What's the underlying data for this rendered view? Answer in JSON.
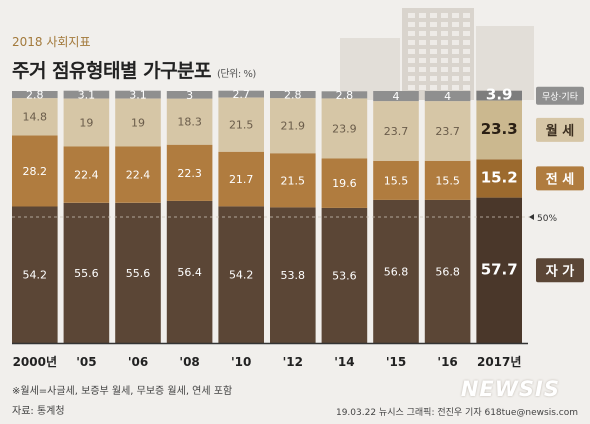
{
  "header": {
    "kicker": "2018 사회지표",
    "title": "주거 점유형태별 가구분포",
    "unit": "(단위: %)"
  },
  "footer": {
    "footnote": "※월세=사글세, 보증부 월세, 무보증 월세, 연세 포함",
    "source": "자료: 통계청",
    "credit": "19.03.22  뉴시스 그래픽: 전진우 기자 618tue@newsis.com",
    "logo": "NEWSIS"
  },
  "colors": {
    "자가": "#5b4636",
    "전세": "#b07c3f",
    "월세": "#d6c6a6",
    "무상·기타": "#8f8f8f"
  },
  "chart_data": {
    "type": "bar",
    "stacked": true,
    "categories": [
      "2000년",
      "'05",
      "'06",
      "'08",
      "'10",
      "'12",
      "'14",
      "'15",
      "'16",
      "2017년"
    ],
    "series": [
      {
        "name": "자 가",
        "values": [
          54.2,
          55.6,
          55.6,
          56.4,
          54.2,
          53.8,
          53.6,
          56.8,
          56.8,
          57.7
        ]
      },
      {
        "name": "전 세",
        "values": [
          28.2,
          22.4,
          22.4,
          22.3,
          21.7,
          21.5,
          19.6,
          15.5,
          15.5,
          15.2
        ]
      },
      {
        "name": "월 세",
        "values": [
          14.8,
          19,
          19,
          18.3,
          21.5,
          21.9,
          23.9,
          23.7,
          23.7,
          23.3
        ]
      },
      {
        "name": "무상·기타",
        "values": [
          2.8,
          3.1,
          3.1,
          3,
          2.7,
          2.8,
          2.8,
          4,
          4,
          3.9
        ]
      }
    ],
    "reference_line": {
      "value": 50,
      "label": "50%"
    },
    "ylim": [
      0,
      100
    ],
    "highlight_last": true,
    "legend": "right"
  }
}
